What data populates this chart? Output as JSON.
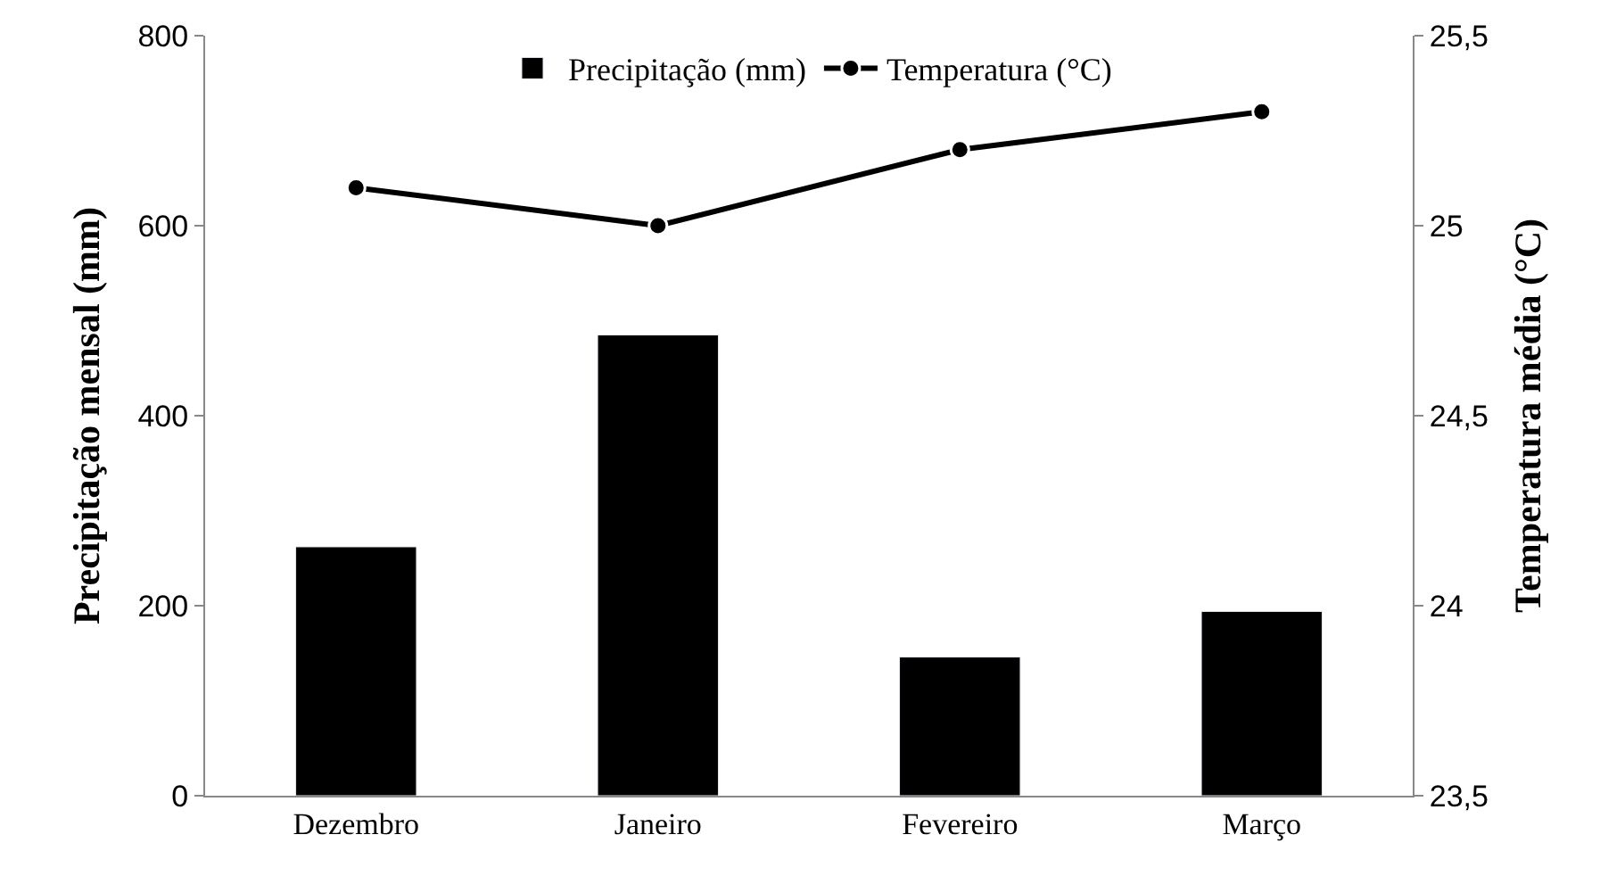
{
  "chart_data": {
    "type": "bar",
    "categories": [
      "Dezembro",
      "Janeiro",
      "Fevereiro",
      "Março"
    ],
    "ylabel": "Precipitação mensal (mm)",
    "y2label": "Temperatura média (°C)",
    "series": [
      {
        "name": "Precipitação (mm)",
        "color": "#000000",
        "values": [
          262,
          485,
          146,
          194
        ]
      },
      {
        "name": "Temperatura (°C)",
        "type": "line",
        "axis": "y2",
        "color": "#000000",
        "marker": "circle",
        "line_style": "solid",
        "values": [
          25.1,
          25.0,
          25.2,
          25.3
        ]
      }
    ],
    "ylim": [
      0,
      800
    ],
    "yticks": [
      0,
      200,
      400,
      600,
      800
    ],
    "y2lim": [
      23.5,
      25.5
    ],
    "y2ticks": [
      {
        "value": 23.5,
        "label": "23,5"
      },
      24,
      {
        "value": 24.5,
        "label": "24,5"
      },
      25,
      {
        "value": 25.5,
        "label": "25,5"
      }
    ],
    "legend": "top"
  }
}
